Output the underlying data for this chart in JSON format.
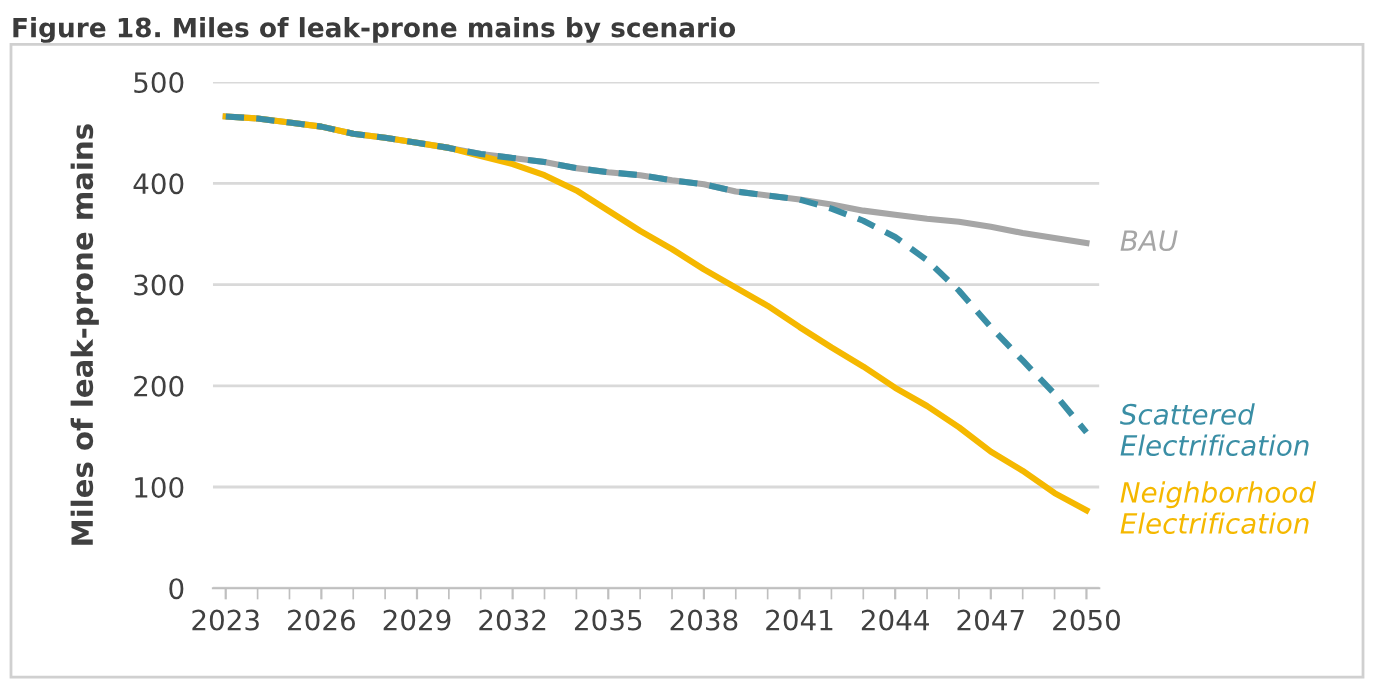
{
  "chart_data": {
    "type": "line",
    "title": "Figure 18. Miles of leak-prone mains by scenario",
    "ylabel": "Miles of leak-prone mains",
    "x": [
      2023,
      2024,
      2025,
      2026,
      2027,
      2028,
      2029,
      2030,
      2031,
      2032,
      2033,
      2034,
      2035,
      2036,
      2037,
      2038,
      2039,
      2040,
      2041,
      2042,
      2043,
      2044,
      2045,
      2046,
      2047,
      2048,
      2049,
      2050
    ],
    "series": [
      {
        "name": "BAU",
        "color": "#a6a6a6",
        "line_style": "solid",
        "values": [
          466,
          464,
          460,
          456,
          449,
          445,
          440,
          435,
          429,
          425,
          421,
          415,
          411,
          408,
          403,
          399,
          392,
          388,
          384,
          379,
          373,
          369,
          365,
          362,
          357,
          351,
          346,
          341
        ]
      },
      {
        "name": "Scattered\nElectrification",
        "color": "#3a8ea5",
        "line_style": "dashed",
        "values": [
          466,
          464,
          460,
          456,
          449,
          445,
          440,
          435,
          429,
          425,
          421,
          415,
          411,
          408,
          403,
          399,
          392,
          388,
          384,
          375,
          363,
          347,
          324,
          294,
          258,
          225,
          192,
          154
        ]
      },
      {
        "name": "Neighborhood\nElectrification",
        "color": "#f5b800",
        "line_style": "solid",
        "values": [
          466,
          464,
          460,
          456,
          449,
          445,
          440,
          435,
          427,
          419,
          408,
          393,
          373,
          353,
          335,
          315,
          297,
          279,
          258,
          238,
          219,
          198,
          180,
          159,
          135,
          116,
          94,
          77
        ]
      }
    ],
    "xlim": [
      2022.6,
      2050.4
    ],
    "xticks": [
      2023,
      2026,
      2029,
      2032,
      2035,
      2038,
      2041,
      2044,
      2047,
      2050
    ],
    "ylim": [
      0,
      500
    ],
    "yticks": [
      0,
      100,
      200,
      300,
      400,
      500
    ],
    "grid": "y",
    "legend": false,
    "marker": "none"
  }
}
